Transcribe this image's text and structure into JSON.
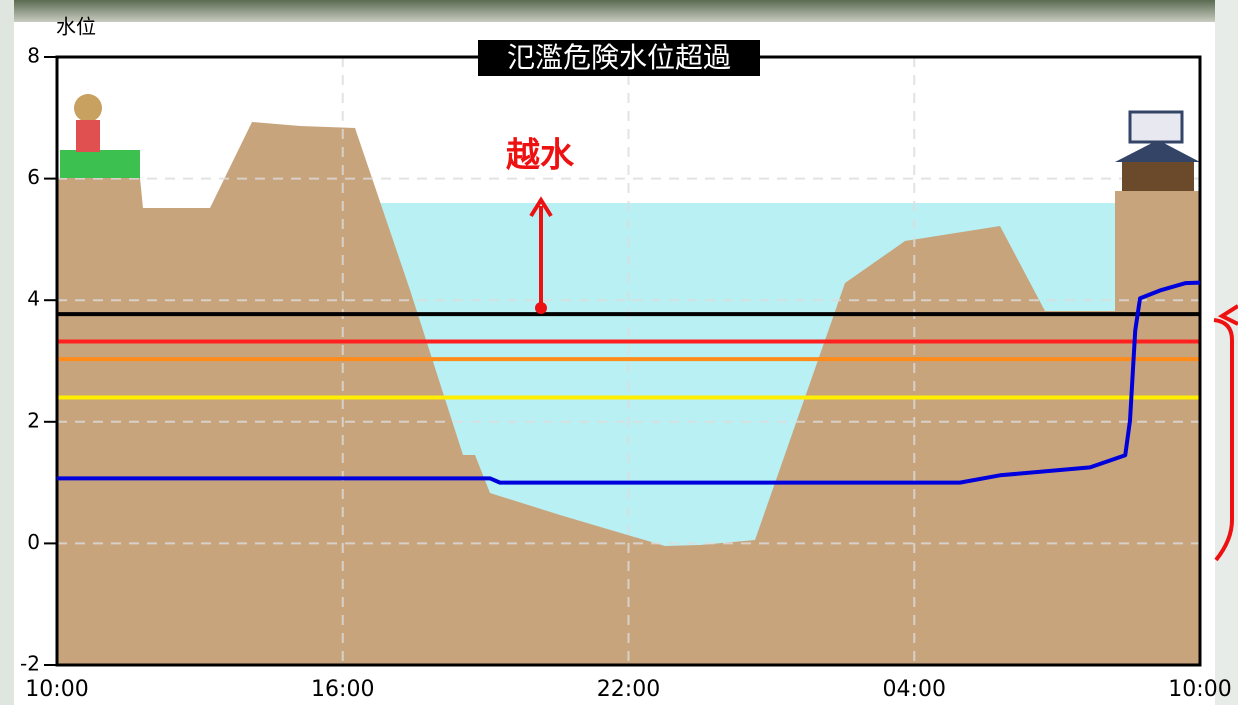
{
  "chart_data": {
    "type": "line",
    "title": "氾濫危険水位超過",
    "y_label": "水位",
    "annotation": "越水",
    "x": [
      0,
      9.09,
      9.3,
      18.96,
      19.8,
      21.69,
      22.43,
      22.53,
      22.64,
      22.74,
      23.16,
      23.69,
      24
    ],
    "series": [
      {
        "color": "#0000dd",
        "values": [
          1.07,
          1.07,
          1.0,
          1.0,
          1.12,
          1.25,
          1.45,
          2.02,
          3.5,
          4.03,
          4.16,
          4.28,
          4.29
        ]
      }
    ],
    "level_lines": [
      {
        "value": 3.77,
        "color": "#000000"
      },
      {
        "value": 3.32,
        "color": "#ff2020"
      },
      {
        "value": 3.03,
        "color": "#ff8c1a"
      },
      {
        "value": 2.4,
        "color": "#ffee00"
      }
    ],
    "xlim": [
      0,
      24
    ],
    "ylim": [
      -2,
      8
    ],
    "xticks": [
      {
        "value": 0,
        "label": "10:00"
      },
      {
        "value": 6,
        "label": "16:00"
      },
      {
        "value": 12,
        "label": "22:00"
      },
      {
        "value": 18,
        "label": "04:00"
      },
      {
        "value": 24,
        "label": "10:00"
      }
    ],
    "yticks": [
      8,
      6,
      4,
      2,
      0,
      -2
    ],
    "grid": true
  }
}
